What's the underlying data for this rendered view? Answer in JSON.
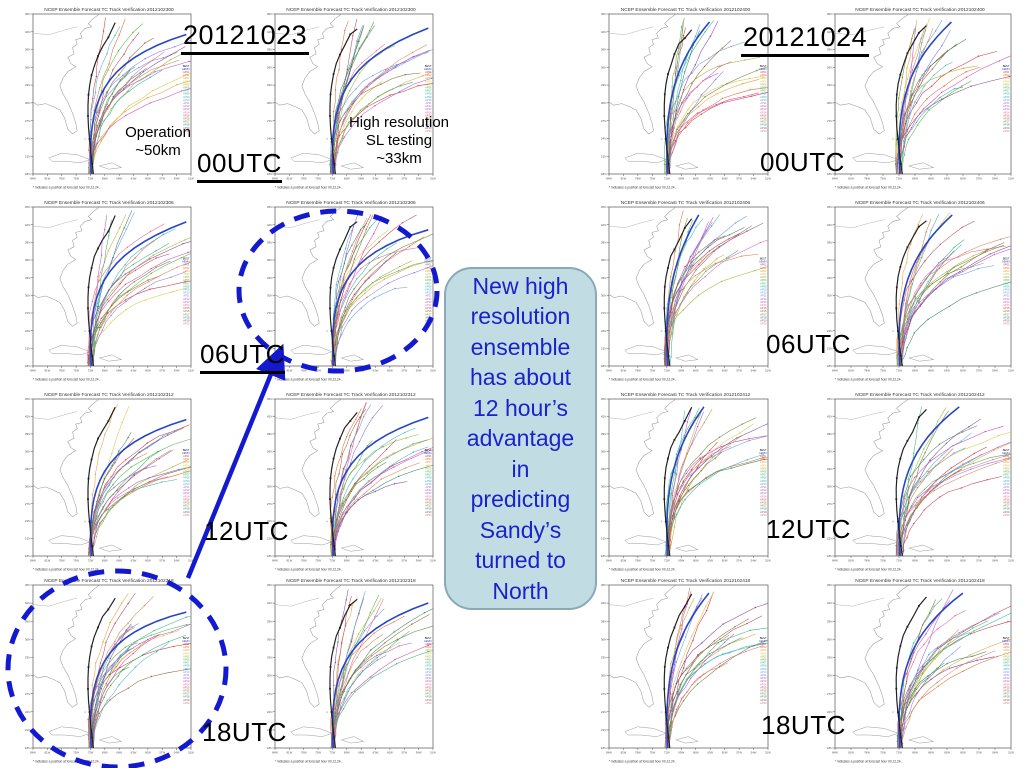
{
  "slide": {
    "left_date": "20121023",
    "right_date": "20121024",
    "row_times": [
      "00UTC",
      "06UTC",
      "12UTC",
      "18UTC"
    ],
    "left_note": {
      "lines": [
        "Operation",
        "~50km"
      ]
    },
    "right_note": {
      "lines": [
        "High resolution",
        "SL testing",
        "~33km"
      ]
    },
    "callout": {
      "lines": [
        "New high",
        "resolution",
        "ensemble",
        "has about",
        "12 hour’s",
        "advantage",
        "in",
        "predicting",
        "Sandy’s",
        "turned to",
        "North"
      ],
      "fill": "#c1dde3",
      "border": "#8ba8b6",
      "text_color": "#1c22cb"
    }
  },
  "maps": {
    "title_prefix": "NCEP Ensemble Forecast TC Track Verification",
    "panels": [
      {
        "row": 0,
        "col": 0,
        "title": "NCEP Ensemble Forecast TC Track Verification 2012102300"
      },
      {
        "row": 0,
        "col": 1,
        "title": "NCEP Ensemble Forecast TC Track Verification 2012102300"
      },
      {
        "row": 0,
        "col": 2,
        "title": "NCEP Ensemble Forecast TC Track Verification 2012102400"
      },
      {
        "row": 0,
        "col": 3,
        "title": "NCEP Ensemble Forecast TC Track Verification 2012102400"
      },
      {
        "row": 1,
        "col": 0,
        "title": "NCEP Ensemble Forecast TC Track Verification 2012102306"
      },
      {
        "row": 1,
        "col": 1,
        "title": "NCEP Ensemble Forecast TC Track Verification 2012102306"
      },
      {
        "row": 1,
        "col": 2,
        "title": "NCEP Ensemble Forecast TC Track Verification 2012102406"
      },
      {
        "row": 1,
        "col": 3,
        "title": "NCEP Ensemble Forecast TC Track Verification 2012102406"
      },
      {
        "row": 2,
        "col": 0,
        "title": "NCEP Ensemble Forecast TC Track Verification 2012102312"
      },
      {
        "row": 2,
        "col": 1,
        "title": "NCEP Ensemble Forecast TC Track Verification 2012102312"
      },
      {
        "row": 2,
        "col": 2,
        "title": "NCEP Ensemble Forecast TC Track Verification 2012102412"
      },
      {
        "row": 2,
        "col": 3,
        "title": "NCEP Ensemble Forecast TC Track Verification 2012102412"
      },
      {
        "row": 3,
        "col": 0,
        "title": "NCEP Ensemble Forecast TC Track Verification 2012102318"
      },
      {
        "row": 3,
        "col": 1,
        "title": "NCEP Ensemble Forecast TC Track Verification 2012102318"
      },
      {
        "row": 3,
        "col": 2,
        "title": "NCEP Ensemble Forecast TC Track Verification 2012102418"
      },
      {
        "row": 3,
        "col": 3,
        "title": "NCEP Ensemble Forecast TC Track Verification 2012102418"
      }
    ],
    "lat_labels": [
      "45N",
      "42N",
      "39N",
      "36N",
      "33N",
      "30N",
      "27N",
      "24N",
      "21N",
      "18N"
    ],
    "lon_labels": [
      "84W",
      "81W",
      "78W",
      "75W",
      "72W",
      "69W",
      "66W",
      "63W",
      "60W",
      "57W",
      "54W",
      "51W"
    ],
    "legend_ids": [
      "BEST",
      "AEMN",
      "AP01",
      "AP02",
      "AP03",
      "AP04",
      "AP05",
      "AP06",
      "AP07",
      "AP08",
      "AP09",
      "AP10",
      "AP11",
      "AP12",
      "AP13",
      "AP14",
      "AP15",
      "AP16",
      "AP17",
      "AP18",
      "AP19",
      "AP20"
    ],
    "footnote": "* indicates a position at forecast hour 00,12,24..",
    "track_colors": [
      "#d23a3a",
      "#e4703a",
      "#e8a13c",
      "#d8c84a",
      "#a8b43c",
      "#58b44a",
      "#3cb478",
      "#38b4a8",
      "#44b4d4",
      "#6a9ae0",
      "#8a7ae0",
      "#b45ad4",
      "#d44ab4",
      "#e46a9a",
      "#c04a5a",
      "#9a6a3a",
      "#6a8a3a",
      "#3a8a6a",
      "#8a4a9a",
      "#d48a5a"
    ],
    "mean_track_color": "#2646c8",
    "best_track_color": "#222222"
  },
  "annotations": {
    "color": "#1219cf",
    "ellipse_1_target": "06UTC high-resolution panel",
    "ellipse_2_target": "18UTC operational panel",
    "arrow": "advantage-arrow"
  }
}
